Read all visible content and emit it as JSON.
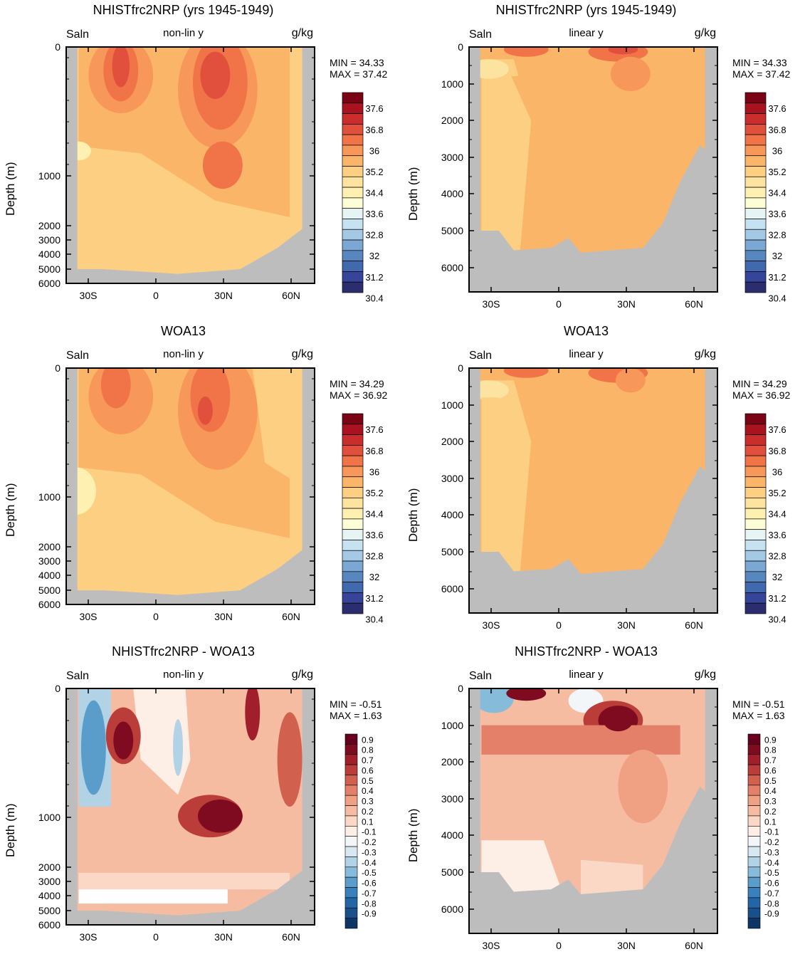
{
  "colors": {
    "land": "#bdbdbd",
    "frame": "#000000",
    "salinity_scale": [
      "#2c2d6e",
      "#36449a",
      "#4169ae",
      "#5887c0",
      "#7aa7d3",
      "#a3c9e4",
      "#c6e1ef",
      "#e6f4f4",
      "#fdfdd6",
      "#fdf0b0",
      "#fde3a0",
      "#fccf83",
      "#fbb569",
      "#f7975a",
      "#f07448",
      "#e1503c",
      "#c92e2d",
      "#a9131f",
      "#7a0413"
    ],
    "diff_scale": [
      "#0d3667",
      "#18508c",
      "#2266a6",
      "#3a80bc",
      "#5a9dcb",
      "#86bcd9",
      "#b2d3e6",
      "#d8e8f1",
      "#f2f6f8",
      "#ffffff",
      "#fdeee6",
      "#fbd8c6",
      "#f6bca2",
      "#f0a083",
      "#e4806a",
      "#d2604f",
      "#bb3d3a",
      "#a11f2b",
      "#7e0b1f",
      "#67001f"
    ]
  },
  "charts": [
    {
      "title": "NHISTfrc2NRP (yrs 1945-1949)",
      "left_label": "Saln",
      "center_label": "non-lin y",
      "right_label": "g/kg",
      "ylabel": "Depth (m)",
      "min_text": "MIN =  34.33",
      "max_text": "MAX =  37.42",
      "y_ticks": [
        "0",
        "1000",
        "2000",
        "3000",
        "4000",
        "5000",
        "6000"
      ],
      "x_ticks": [
        "30S",
        "0",
        "30N",
        "60N"
      ],
      "scale": "salinity"
    },
    {
      "title": "NHISTfrc2NRP (yrs 1945-1949)",
      "left_label": "Saln",
      "center_label": "linear y",
      "right_label": "g/kg",
      "ylabel": "Depth (m)",
      "min_text": "MIN =  34.33",
      "max_text": "MAX =  37.42",
      "y_ticks": [
        "0",
        "1000",
        "2000",
        "3000",
        "4000",
        "5000",
        "6000"
      ],
      "x_ticks": [
        "30S",
        "0",
        "30N",
        "60N"
      ],
      "scale": "salinity"
    },
    {
      "title": "WOA13",
      "left_label": "Saln",
      "center_label": "non-lin y",
      "right_label": "g/kg",
      "ylabel": "Depth (m)",
      "min_text": "MIN =  34.29",
      "max_text": "MAX =  36.92",
      "y_ticks": [
        "0",
        "1000",
        "2000",
        "3000",
        "4000",
        "5000",
        "6000"
      ],
      "x_ticks": [
        "30S",
        "0",
        "30N",
        "60N"
      ],
      "scale": "salinity"
    },
    {
      "title": "WOA13",
      "left_label": "Saln",
      "center_label": "linear y",
      "right_label": "g/kg",
      "ylabel": "Depth (m)",
      "min_text": "MIN =  34.29",
      "max_text": "MAX =  36.92",
      "y_ticks": [
        "0",
        "1000",
        "2000",
        "3000",
        "4000",
        "5000",
        "6000"
      ],
      "x_ticks": [
        "30S",
        "0",
        "30N",
        "60N"
      ],
      "scale": "salinity"
    },
    {
      "title": "NHISTfrc2NRP - WOA13",
      "left_label": "Saln",
      "center_label": "non-lin y",
      "right_label": "g/kg",
      "ylabel": "Depth (m)",
      "min_text": "MIN =  -0.51",
      "max_text": "MAX =   1.63",
      "y_ticks": [
        "0",
        "1000",
        "2000",
        "3000",
        "4000",
        "5000",
        "6000"
      ],
      "x_ticks": [
        "30S",
        "0",
        "30N",
        "60N"
      ],
      "scale": "diff"
    },
    {
      "title": "NHISTfrc2NRP - WOA13",
      "left_label": "Saln",
      "center_label": "linear y",
      "right_label": "g/kg",
      "ylabel": "Depth (m)",
      "min_text": "MIN =  -0.51",
      "max_text": "MAX =   1.63",
      "y_ticks": [
        "0",
        "1000",
        "2000",
        "3000",
        "4000",
        "5000",
        "6000"
      ],
      "x_ticks": [
        "30S",
        "0",
        "30N",
        "60N"
      ],
      "scale": "diff"
    }
  ],
  "salinity_labels": [
    "37.6",
    "36.8",
    "36",
    "35.2",
    "34.4",
    "33.6",
    "32.8",
    "32",
    "31.2",
    "30.4"
  ],
  "diff_labels": [
    "0.9",
    "0.8",
    "0.7",
    "0.6",
    "0.5",
    "0.4",
    "0.3",
    "0.2",
    "0.1",
    "-0.1",
    "-0.2",
    "-0.3",
    "-0.4",
    "-0.5",
    "-0.6",
    "-0.7",
    "-0.8",
    "-0.9"
  ],
  "chart_data": [
    {
      "type": "heatmap",
      "title": "NHISTfrc2NRP (yrs 1945-1949)",
      "xlabel": "",
      "ylabel": "Depth (m)",
      "x_axis": "latitude",
      "y_axis": "depth (non-linear)",
      "ylim": [
        6500,
        0
      ],
      "xlim": [
        -40,
        70
      ],
      "units": "g/kg",
      "min": 34.33,
      "max": 37.42,
      "contour_levels": [
        30.4,
        31.2,
        32,
        32.8,
        33.6,
        34.4,
        35.2,
        36,
        36.8,
        37.6
      ]
    },
    {
      "type": "heatmap",
      "title": "NHISTfrc2NRP (yrs 1945-1949)",
      "xlabel": "",
      "ylabel": "Depth (m)",
      "x_axis": "latitude",
      "y_axis": "depth (linear)",
      "ylim": [
        6700,
        0
      ],
      "xlim": [
        -40,
        70
      ],
      "units": "g/kg",
      "min": 34.33,
      "max": 37.42,
      "contour_levels": [
        30.4,
        31.2,
        32,
        32.8,
        33.6,
        34.4,
        35.2,
        36,
        36.8,
        37.6
      ]
    },
    {
      "type": "heatmap",
      "title": "WOA13",
      "xlabel": "",
      "ylabel": "Depth (m)",
      "x_axis": "latitude",
      "y_axis": "depth (non-linear)",
      "ylim": [
        6500,
        0
      ],
      "xlim": [
        -40,
        70
      ],
      "units": "g/kg",
      "min": 34.29,
      "max": 36.92,
      "contour_levels": [
        30.4,
        31.2,
        32,
        32.8,
        33.6,
        34.4,
        35.2,
        36,
        36.8,
        37.6
      ]
    },
    {
      "type": "heatmap",
      "title": "WOA13",
      "xlabel": "",
      "ylabel": "Depth (m)",
      "x_axis": "latitude",
      "y_axis": "depth (linear)",
      "ylim": [
        6700,
        0
      ],
      "xlim": [
        -40,
        70
      ],
      "units": "g/kg",
      "min": 34.29,
      "max": 36.92,
      "contour_levels": [
        30.4,
        31.2,
        32,
        32.8,
        33.6,
        34.4,
        35.2,
        36,
        36.8,
        37.6
      ]
    },
    {
      "type": "heatmap",
      "title": "NHISTfrc2NRP - WOA13",
      "xlabel": "",
      "ylabel": "Depth (m)",
      "x_axis": "latitude",
      "y_axis": "depth (non-linear)",
      "ylim": [
        6500,
        0
      ],
      "xlim": [
        -40,
        70
      ],
      "units": "g/kg",
      "min": -0.51,
      "max": 1.63,
      "contour_levels": [
        -0.9,
        -0.8,
        -0.7,
        -0.6,
        -0.5,
        -0.4,
        -0.3,
        -0.2,
        -0.1,
        0.1,
        0.2,
        0.3,
        0.4,
        0.5,
        0.6,
        0.7,
        0.8,
        0.9
      ]
    },
    {
      "type": "heatmap",
      "title": "NHISTfrc2NRP - WOA13",
      "xlabel": "",
      "ylabel": "Depth (m)",
      "x_axis": "latitude",
      "y_axis": "depth (linear)",
      "ylim": [
        6700,
        0
      ],
      "xlim": [
        -40,
        70
      ],
      "units": "g/kg",
      "min": -0.51,
      "max": 1.63,
      "contour_levels": [
        -0.9,
        -0.8,
        -0.7,
        -0.6,
        -0.5,
        -0.4,
        -0.3,
        -0.2,
        -0.1,
        0.1,
        0.2,
        0.3,
        0.4,
        0.5,
        0.6,
        0.7,
        0.8,
        0.9
      ]
    }
  ]
}
